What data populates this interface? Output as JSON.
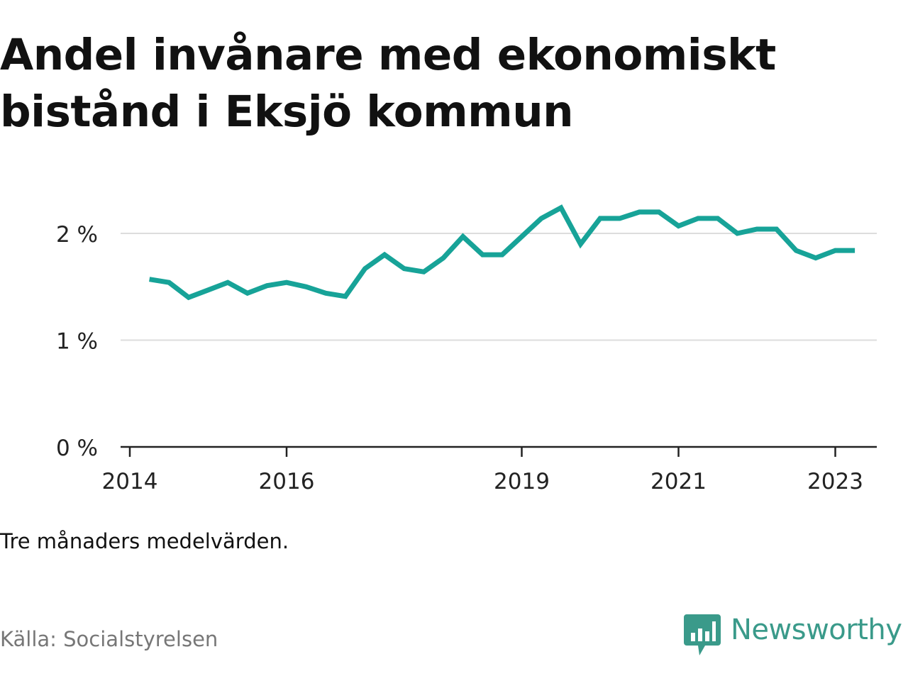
{
  "title": "Andel invånare med ekonomiskt bistånd i Eksjö kommun",
  "note": "Tre månaders medelvärden.",
  "source": "Källa: Socialstyrelsen",
  "brand": {
    "name": "Newsworthy",
    "color": "#3a9a8a",
    "icon": "bar-chart-speech-bubble-icon"
  },
  "chart_data": {
    "type": "line",
    "title": "Andel invånare med ekonomiskt bistånd i Eksjö kommun",
    "xlabel": "",
    "ylabel": "",
    "y_unit": "%",
    "ylim": [
      0,
      2.3
    ],
    "y_ticks": [
      0,
      1,
      2
    ],
    "y_tick_labels": [
      "0 %",
      "1 %",
      "2 %"
    ],
    "x_ticks": [
      2014,
      2016,
      2019,
      2021,
      2023
    ],
    "x_tick_labels": [
      "2014",
      "2016",
      "2019",
      "2021",
      "2023"
    ],
    "grid": true,
    "legend": "none",
    "line_color": "#17a398",
    "series": [
      {
        "x": [
          2014.25,
          2014.5,
          2014.75,
          2015.0,
          2015.25,
          2015.5,
          2015.75,
          2016.0,
          2016.25,
          2016.5,
          2016.75,
          2017.0,
          2017.25,
          2017.5,
          2017.75,
          2018.0,
          2018.25,
          2018.5,
          2018.75,
          2019.0,
          2019.25,
          2019.5,
          2019.75,
          2020.0,
          2020.25,
          2020.5,
          2020.75,
          2021.0,
          2021.25,
          2021.5,
          2021.75,
          2022.0,
          2022.25,
          2022.5,
          2022.75,
          2023.0,
          2023.25
        ],
        "values": [
          1.57,
          1.54,
          1.4,
          1.47,
          1.54,
          1.44,
          1.51,
          1.54,
          1.5,
          1.44,
          1.41,
          1.67,
          1.8,
          1.67,
          1.64,
          1.77,
          1.97,
          1.8,
          1.8,
          1.97,
          2.14,
          2.24,
          1.9,
          2.14,
          2.14,
          2.2,
          2.2,
          2.07,
          2.14,
          2.14,
          2.0,
          2.04,
          2.04,
          1.84,
          1.77,
          1.84,
          1.84
        ]
      }
    ]
  }
}
